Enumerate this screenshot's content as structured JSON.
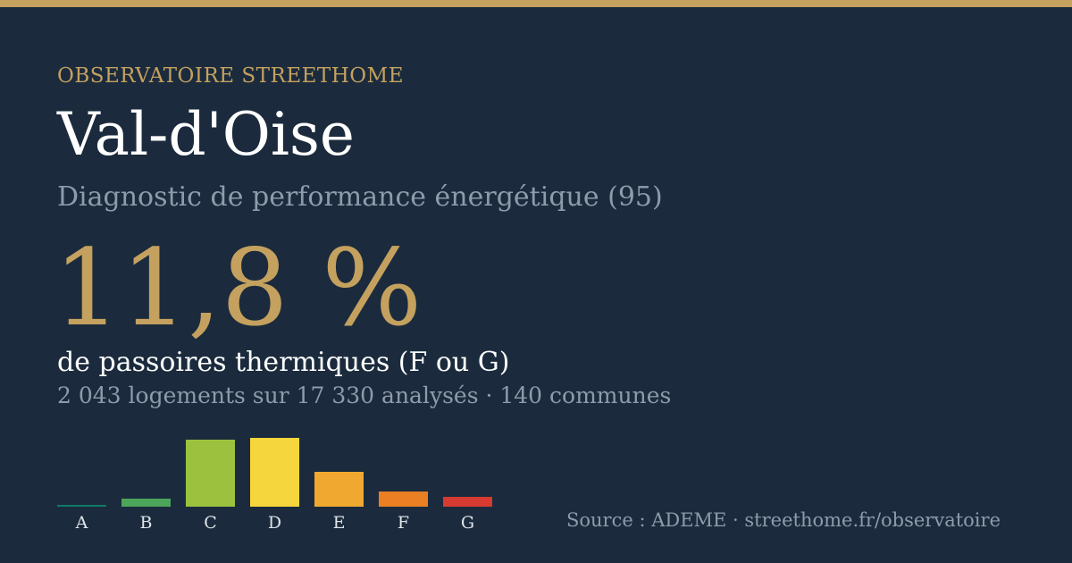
{
  "header": {
    "eyebrow": "OBSERVATOIRE STREETHOME",
    "title": "Val-d'Oise",
    "subtitle": "Diagnostic de performance énergétique (95)"
  },
  "metric": {
    "value": "11,8 %",
    "label": "de passoires thermiques (F ou G)",
    "detail": "2 043 logements sur 17 330 analysés · 140 communes"
  },
  "footer": {
    "source": "Source : ADEME · streethome.fr/observatoire"
  },
  "colors": {
    "background": "#1b2b3d",
    "accent": "#c4a15e"
  },
  "chart_data": {
    "type": "bar",
    "categories": [
      "A",
      "B",
      "C",
      "D",
      "E",
      "F",
      "G"
    ],
    "values": [
      2,
      9,
      75,
      77,
      39,
      17,
      11
    ],
    "colors": [
      "#0e7a63",
      "#4ca55a",
      "#9bc13f",
      "#f5d63c",
      "#f0a830",
      "#ea7f24",
      "#d63a30"
    ],
    "ylim": [
      0,
      77
    ],
    "grid": false,
    "legend": "none"
  }
}
